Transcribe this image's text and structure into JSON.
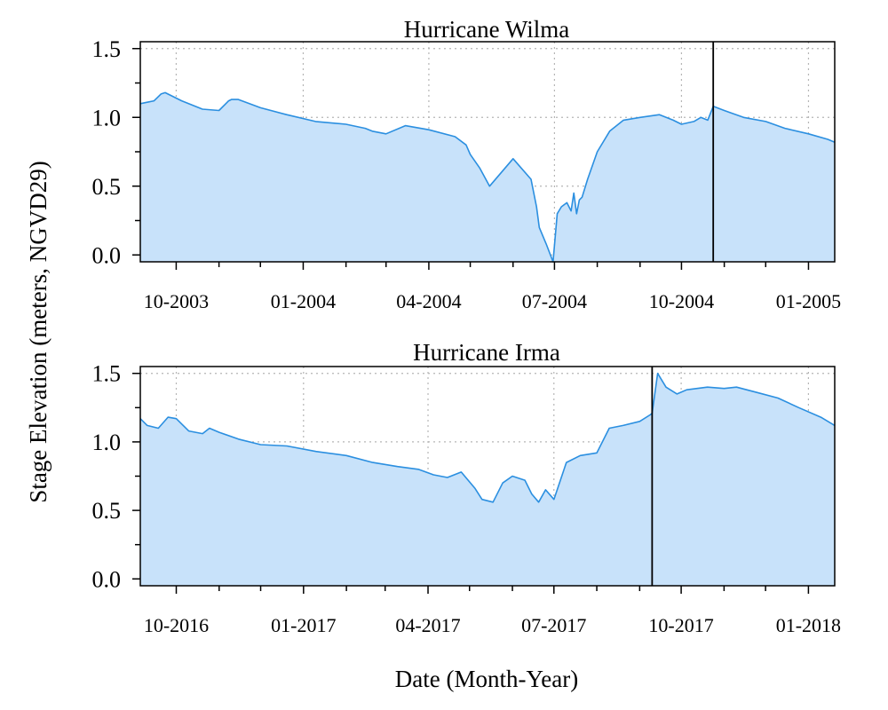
{
  "figure": {
    "ylabel": "Stage Elevation (meters, NGVD29)",
    "xlabel": "Date (Month-Year)"
  },
  "chart_data": [
    {
      "type": "area",
      "title": "Hurricane Wilma",
      "xlabel": "",
      "ylabel": "",
      "xlim": [
        "2003-09-05",
        "2005-01-20"
      ],
      "ylim": [
        -0.05,
        1.55
      ],
      "yticks": [
        0.0,
        0.5,
        1.0,
        1.5
      ],
      "yticklabels": [
        "0.0",
        "0.5",
        "1.0",
        "1.5"
      ],
      "xticks": [
        "2003-10-01",
        "2004-01-01",
        "2004-04-01",
        "2004-07-01",
        "2004-10-01",
        "2005-01-01"
      ],
      "xticklabels": [
        "10-2003",
        "01-2004",
        "04-2004",
        "07-2004",
        "10-2004",
        "01-2005"
      ],
      "grid": true,
      "event_line": "2004-10-24",
      "colors": {
        "line": "#2b8fe0",
        "fill": "#c8e2fa",
        "event": "#000000"
      },
      "series": [
        {
          "x": [
            "2003-09-05",
            "2003-09-10",
            "2003-09-15",
            "2003-09-20",
            "2003-09-23",
            "2003-10-05",
            "2003-10-20",
            "2003-11-01",
            "2003-11-08",
            "2003-11-10",
            "2003-11-15",
            "2003-12-01",
            "2003-12-20",
            "2004-01-10",
            "2004-02-01",
            "2004-02-15",
            "2004-02-20",
            "2004-03-01",
            "2004-03-15",
            "2004-04-01",
            "2004-04-20",
            "2004-04-28",
            "2004-05-01",
            "2004-05-08",
            "2004-05-15",
            "2004-06-01",
            "2004-06-14",
            "2004-06-18",
            "2004-06-20",
            "2004-06-25",
            "2004-06-30",
            "2004-07-03",
            "2004-07-06",
            "2004-07-10",
            "2004-07-13",
            "2004-07-15",
            "2004-07-17",
            "2004-07-19",
            "2004-07-21",
            "2004-07-25",
            "2004-08-01",
            "2004-08-10",
            "2004-08-20",
            "2004-09-01",
            "2004-09-15",
            "2004-09-25",
            "2004-10-01",
            "2004-10-10",
            "2004-10-15",
            "2004-10-20",
            "2004-10-24",
            "2004-11-01",
            "2004-11-15",
            "2004-12-01",
            "2004-12-15",
            "2005-01-01",
            "2005-01-15",
            "2005-01-20"
          ],
          "y": [
            1.1,
            1.11,
            1.12,
            1.17,
            1.18,
            1.12,
            1.06,
            1.05,
            1.12,
            1.13,
            1.13,
            1.07,
            1.02,
            0.97,
            0.95,
            0.92,
            0.9,
            0.88,
            0.94,
            0.91,
            0.86,
            0.8,
            0.73,
            0.63,
            0.5,
            0.7,
            0.55,
            0.35,
            0.2,
            0.08,
            -0.05,
            0.3,
            0.35,
            0.38,
            0.32,
            0.45,
            0.3,
            0.4,
            0.42,
            0.55,
            0.75,
            0.9,
            0.98,
            1.0,
            1.02,
            0.98,
            0.95,
            0.97,
            1.0,
            0.98,
            1.08,
            1.05,
            1.0,
            0.97,
            0.92,
            0.88,
            0.84,
            0.82
          ]
        }
      ]
    },
    {
      "type": "area",
      "title": "Hurricane Irma",
      "xlabel": "",
      "ylabel": "",
      "xlim": [
        "2016-09-05",
        "2018-01-20"
      ],
      "ylim": [
        -0.05,
        1.55
      ],
      "yticks": [
        0.0,
        0.5,
        1.0,
        1.5
      ],
      "yticklabels": [
        "0.0",
        "0.5",
        "1.0",
        "1.5"
      ],
      "xticks": [
        "2016-10-01",
        "2017-01-01",
        "2017-04-01",
        "2017-07-01",
        "2017-10-01",
        "2018-01-01"
      ],
      "xticklabels": [
        "10-2016",
        "01-2017",
        "04-2017",
        "07-2017",
        "10-2017",
        "01-2018"
      ],
      "grid": true,
      "event_line": "2017-09-10",
      "colors": {
        "line": "#2b8fe0",
        "fill": "#c8e2fa",
        "event": "#000000"
      },
      "series": [
        {
          "x": [
            "2016-09-05",
            "2016-09-10",
            "2016-09-18",
            "2016-09-25",
            "2016-10-01",
            "2016-10-10",
            "2016-10-20",
            "2016-10-25",
            "2016-11-01",
            "2016-11-15",
            "2016-12-01",
            "2016-12-20",
            "2017-01-10",
            "2017-02-01",
            "2017-02-20",
            "2017-03-10",
            "2017-03-25",
            "2017-04-05",
            "2017-04-15",
            "2017-04-25",
            "2017-05-05",
            "2017-05-10",
            "2017-05-18",
            "2017-05-25",
            "2017-06-01",
            "2017-06-10",
            "2017-06-15",
            "2017-06-20",
            "2017-06-25",
            "2017-07-01",
            "2017-07-10",
            "2017-07-20",
            "2017-08-01",
            "2017-08-10",
            "2017-08-20",
            "2017-09-01",
            "2017-09-09",
            "2017-09-10",
            "2017-09-14",
            "2017-09-20",
            "2017-09-28",
            "2017-10-05",
            "2017-10-20",
            "2017-11-01",
            "2017-11-10",
            "2017-11-25",
            "2017-12-10",
            "2017-12-25",
            "2018-01-10",
            "2018-01-20"
          ],
          "y": [
            1.17,
            1.12,
            1.1,
            1.18,
            1.17,
            1.08,
            1.06,
            1.1,
            1.07,
            1.02,
            0.98,
            0.97,
            0.93,
            0.9,
            0.85,
            0.82,
            0.8,
            0.76,
            0.74,
            0.78,
            0.66,
            0.58,
            0.56,
            0.7,
            0.75,
            0.72,
            0.62,
            0.56,
            0.65,
            0.58,
            0.85,
            0.9,
            0.92,
            1.1,
            1.12,
            1.15,
            1.2,
            1.21,
            1.5,
            1.4,
            1.35,
            1.38,
            1.4,
            1.39,
            1.4,
            1.36,
            1.32,
            1.25,
            1.18,
            1.12
          ]
        }
      ]
    }
  ]
}
